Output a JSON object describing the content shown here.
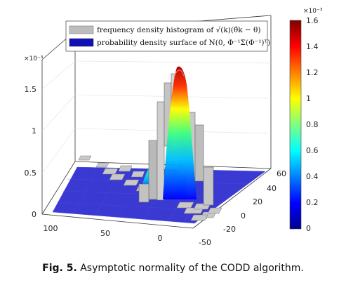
{
  "caption": {
    "label": "Fig. 5.",
    "text": "Asymptotic normality of the CODD algorithm."
  },
  "chart_data": {
    "type": "surface_histogram_3d",
    "z_exponent_label": "×10⁻³",
    "colorbar_exponent_label": "×10⁻³",
    "legend": [
      {
        "name": "frequency density histogram of √(k)(θ̂k − θ)",
        "color": "#bdbdbd"
      },
      {
        "name": "probability density surface of N(0, Φ⁻¹Σ(Φ⁻¹)ᵀ)",
        "color": "#1010b8"
      }
    ],
    "x_axis": {
      "ticks": [
        "100",
        "50",
        "0",
        "-50"
      ]
    },
    "y_axis": {
      "ticks": [
        "60",
        "40",
        "20",
        "0",
        "-20"
      ]
    },
    "z_axis": {
      "ticks": [
        "0",
        "0.5",
        "1",
        "1.5"
      ],
      "range": [
        0,
        1.6
      ]
    },
    "colorbar": {
      "ticks": [
        "0",
        "0.2",
        "0.4",
        "0.6",
        "0.8",
        "1",
        "1.2",
        "1.4",
        "1.6"
      ],
      "range": [
        0,
        1.6
      ],
      "colormap": "jet"
    },
    "peak_value": 1.6
  }
}
